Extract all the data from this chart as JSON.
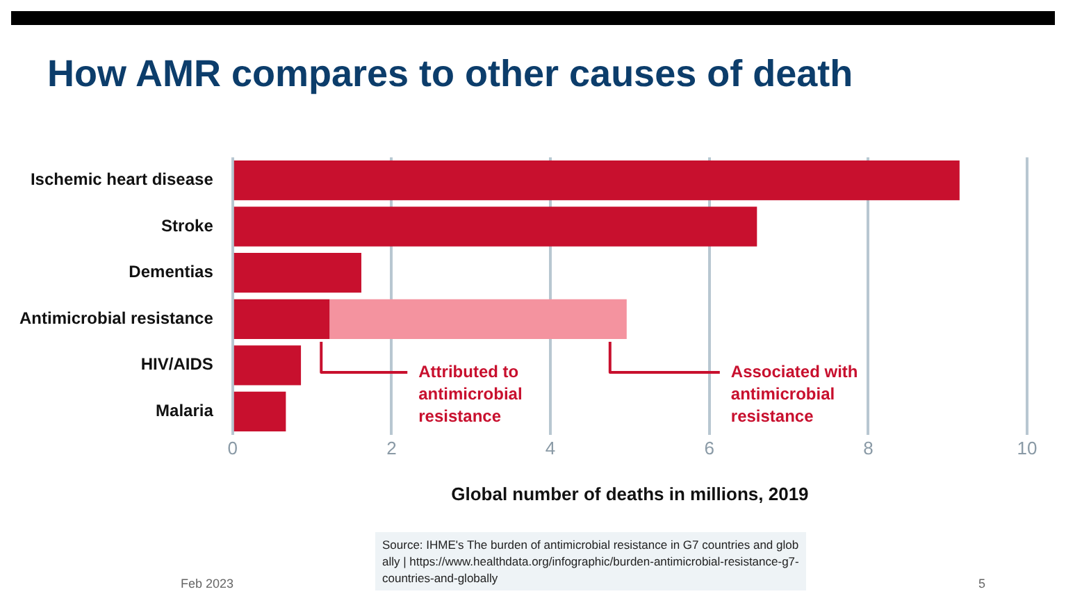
{
  "chart_data": {
    "type": "bar",
    "orientation": "horizontal",
    "stacked": true,
    "title": "How AMR compares to other causes of death",
    "xlabel": "Global number of deaths in millions, 2019",
    "categories": [
      "Ischemic heart disease",
      "Stroke",
      "Dementias",
      "Antimicrobial resistance",
      "HIV/AIDS",
      "Malaria"
    ],
    "series": [
      {
        "name": "Attributed to antimicrobial resistance",
        "color": "#c8102e",
        "values": [
          9.15,
          6.6,
          1.62,
          1.22,
          0.86,
          0.67
        ]
      },
      {
        "name": "Associated with antimicrobial resistance",
        "color": "#f4939f",
        "values": [
          null,
          null,
          null,
          3.74,
          null,
          null
        ]
      }
    ],
    "xlim": [
      0,
      10
    ],
    "xticks": [
      0,
      2,
      4,
      6,
      8,
      10
    ],
    "grid": "x",
    "legend": false,
    "annotations": [
      "Source: IHME's The burden of antimicrobial resistance in G7 countries and globally | https://www.healthdata.org/infographic/burden-antimicrobial-resistance-g7-countries-and-globally",
      "Feb 2023",
      "5"
    ]
  }
}
